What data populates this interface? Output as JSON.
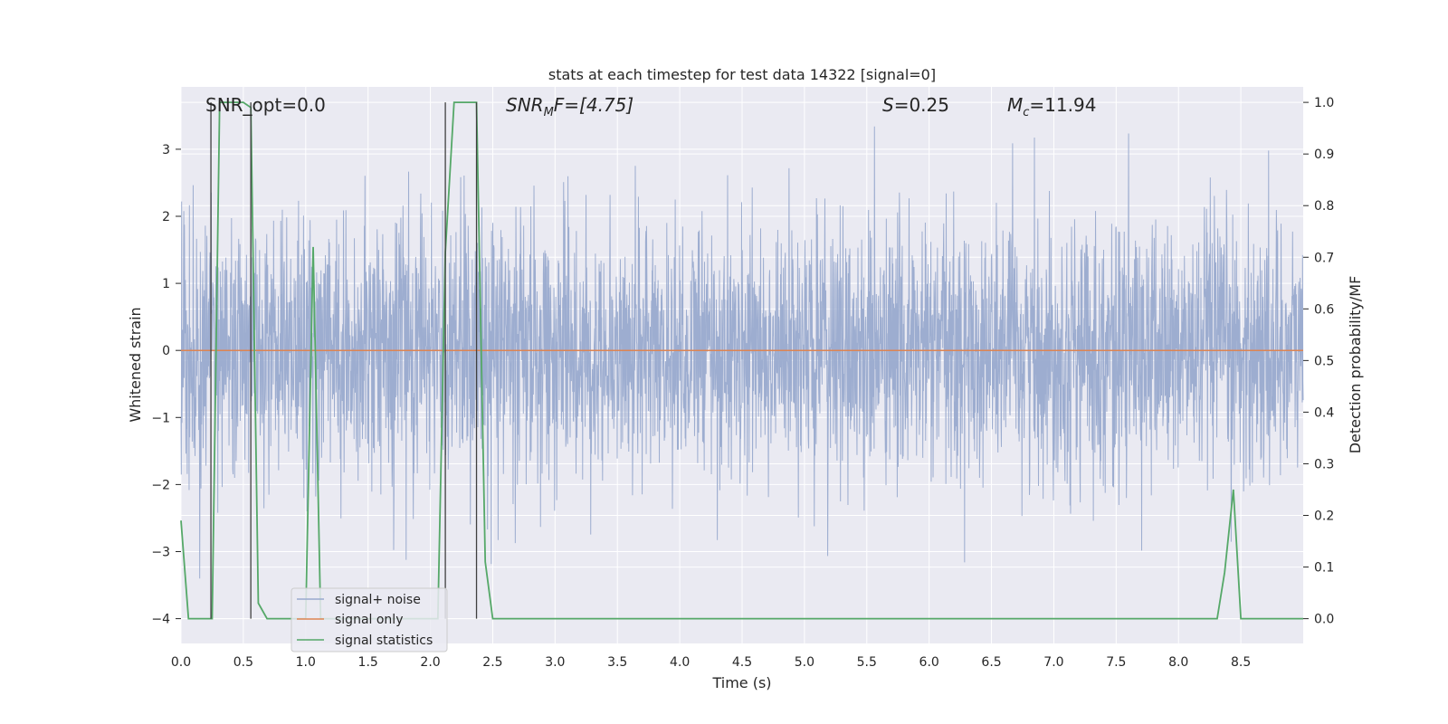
{
  "chart_data": {
    "type": "line",
    "title": "stats at each timestep for test data 14322 [signal=0]",
    "xlabel": "Time (s)",
    "ylabel_left": "Whitened strain",
    "ylabel_right": "Detection probability/MF",
    "xlim": [
      0.0,
      9.0
    ],
    "ylim_left": [
      -4.37,
      3.93
    ],
    "ylim_right": [
      -0.048,
      1.03
    ],
    "x_ticks": [
      "0.0",
      "0.5",
      "1.0",
      "1.5",
      "2.0",
      "2.5",
      "3.0",
      "3.5",
      "4.0",
      "4.5",
      "5.0",
      "5.5",
      "6.0",
      "6.5",
      "7.0",
      "7.5",
      "8.0",
      "8.5"
    ],
    "y_ticks_left": [
      "−4",
      "−3",
      "−2",
      "−1",
      "0",
      "1",
      "2",
      "3"
    ],
    "y_ticks_right": [
      "0.0",
      "0.1",
      "0.2",
      "0.3",
      "0.4",
      "0.5",
      "0.6",
      "0.7",
      "0.8",
      "0.9",
      "1.0"
    ],
    "grid": true,
    "legend_position": "lower-left",
    "annotations": {
      "snr_opt": "SNR_opt=0.0",
      "snr_mf_base": "SNR",
      "snr_mf_sub": "M",
      "snr_mf_tail": "F=[4.75]",
      "s_label_italic": "S",
      "s_label_tail": "=0.25",
      "mc_base": "M",
      "mc_sub": "c",
      "mc_tail": "=11.94"
    },
    "series": [
      {
        "name": "signal+ noise",
        "axis": "left",
        "color": "#99aace",
        "kind": "noise",
        "sigma": 0.95,
        "x_range": [
          0.0,
          9.0
        ],
        "min": -4.0,
        "max": 3.6
      },
      {
        "name": "signal only",
        "axis": "left",
        "color": "#dd8452",
        "x": [
          0.0,
          9.0
        ],
        "y": [
          0.0,
          0.0
        ]
      },
      {
        "name": "signal statistics",
        "axis": "right",
        "color": "#55a868",
        "x": [
          0.0,
          0.06,
          0.25,
          0.31,
          0.5,
          0.56,
          0.62,
          0.69,
          1.0,
          1.06,
          1.12,
          1.19,
          2.06,
          2.12,
          2.19,
          2.37,
          2.44,
          2.5,
          8.31,
          8.37,
          8.44,
          8.5,
          9.0
        ],
        "y": [
          0.19,
          0.0,
          0.0,
          1.0,
          1.0,
          0.99,
          0.03,
          0.0,
          0.0,
          0.72,
          0.0,
          0.0,
          0.0,
          0.71,
          1.0,
          1.0,
          0.11,
          0.0,
          0.0,
          0.09,
          0.25,
          0.0,
          0.0
        ]
      }
    ],
    "markers": [
      {
        "axis": "right",
        "x": 0.24,
        "y0": 0.0,
        "y1": 1.0
      },
      {
        "axis": "right",
        "x": 0.56,
        "y0": 0.0,
        "y1": 1.0
      },
      {
        "axis": "right",
        "x": 2.12,
        "y0": 0.0,
        "y1": 1.0
      },
      {
        "axis": "right",
        "x": 2.37,
        "y0": 0.0,
        "y1": 1.0
      }
    ],
    "colors": {
      "plot_background": "#eaeaf2",
      "grid": "#ffffff",
      "text": "#262626",
      "marker": "#404040"
    }
  }
}
